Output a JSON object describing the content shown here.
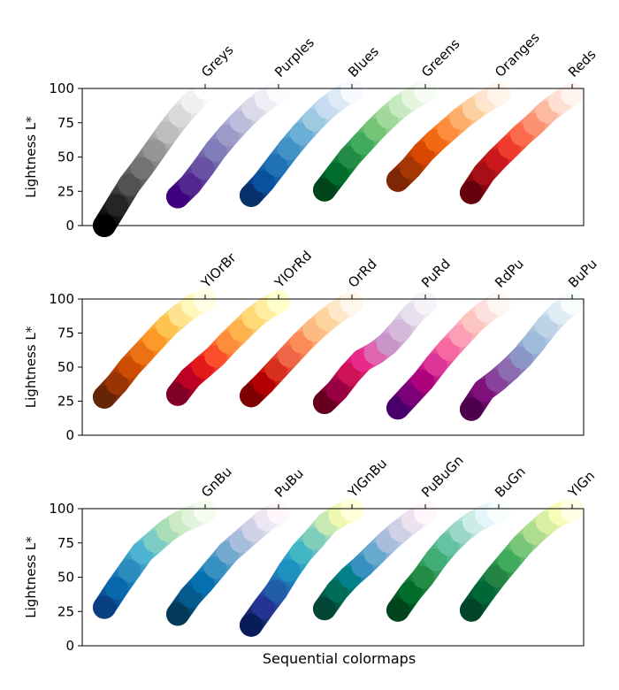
{
  "chart_data": [
    {
      "type": "scatter",
      "ylabel": "Lightness L*",
      "ylim": [
        0,
        100
      ],
      "yticks": [
        0,
        25,
        50,
        75,
        100
      ],
      "series": [
        {
          "name": "Greys",
          "values": [
            0,
            15,
            30,
            42,
            55,
            68,
            80,
            90,
            100
          ],
          "colors": [
            "#000000",
            "#252525",
            "#525252",
            "#737373",
            "#969696",
            "#bdbdbd",
            "#d9d9d9",
            "#f0f0f0",
            "#ffffff"
          ]
        },
        {
          "name": "Purples",
          "values": [
            21,
            30,
            42,
            55,
            66,
            76,
            85,
            92,
            98
          ],
          "colors": [
            "#3f007d",
            "#54278f",
            "#6a51a3",
            "#807dba",
            "#9e9ac8",
            "#bcbddc",
            "#dadaeb",
            "#efedf5",
            "#fcfbfd"
          ]
        },
        {
          "name": "Blues",
          "values": [
            22,
            32,
            44,
            56,
            67,
            77,
            86,
            93,
            98
          ],
          "colors": [
            "#08306b",
            "#08519c",
            "#2171b5",
            "#4292c6",
            "#6baed6",
            "#9ecae1",
            "#c6dbef",
            "#deebf7",
            "#f7fbff"
          ]
        },
        {
          "name": "Greens",
          "values": [
            26,
            38,
            50,
            60,
            70,
            79,
            87,
            93,
            98
          ],
          "colors": [
            "#00441b",
            "#006d2c",
            "#238b45",
            "#41ab5d",
            "#74c476",
            "#a1d99b",
            "#c7e9c0",
            "#e5f5e0",
            "#f7fcf5"
          ]
        },
        {
          "name": "Oranges",
          "values": [
            33,
            42,
            53,
            62,
            70,
            78,
            85,
            91,
            96
          ],
          "colors": [
            "#7f2704",
            "#a63603",
            "#d94801",
            "#f16913",
            "#fd8d3c",
            "#fdae6b",
            "#fdd0a2",
            "#fee6ce",
            "#fff5eb"
          ]
        },
        {
          "name": "Reds",
          "values": [
            24,
            38,
            48,
            57,
            66,
            74,
            83,
            90,
            96
          ],
          "colors": [
            "#67000d",
            "#a50f15",
            "#cb181d",
            "#ef3b2c",
            "#fb6a4a",
            "#fc9272",
            "#fcbba1",
            "#fee0d2",
            "#fff5f0"
          ]
        }
      ]
    },
    {
      "type": "scatter",
      "ylabel": "Lightness L*",
      "ylim": [
        0,
        100
      ],
      "yticks": [
        0,
        25,
        50,
        75,
        100
      ],
      "series": [
        {
          "name": "YlOrBr",
          "values": [
            28,
            38,
            50,
            60,
            70,
            80,
            88,
            95,
            99
          ],
          "colors": [
            "#662506",
            "#993404",
            "#cc4c02",
            "#ec7014",
            "#fe9929",
            "#fec44f",
            "#fee391",
            "#fff7bc",
            "#ffffe5"
          ]
        },
        {
          "name": "YlOrRd",
          "values": [
            30,
            42,
            50,
            58,
            68,
            77,
            86,
            93,
            98
          ],
          "colors": [
            "#800026",
            "#bd0026",
            "#e31a1c",
            "#fc4e2a",
            "#fd8d3c",
            "#feb24c",
            "#fed976",
            "#ffeda0",
            "#ffffcc"
          ]
        },
        {
          "name": "OrRd",
          "values": [
            29,
            38,
            48,
            58,
            68,
            77,
            85,
            92,
            97
          ],
          "colors": [
            "#7f0000",
            "#b30000",
            "#d7301f",
            "#ef6548",
            "#fc8d59",
            "#fdbb84",
            "#fdd49e",
            "#fee8c8",
            "#fff7ec"
          ]
        },
        {
          "name": "PuRd",
          "values": [
            24,
            33,
            45,
            55,
            60,
            67,
            77,
            89,
            97
          ],
          "colors": [
            "#67001f",
            "#980043",
            "#ce1256",
            "#e7298a",
            "#df65b0",
            "#c994c7",
            "#d4b9da",
            "#e7e1ef",
            "#f7f4f9"
          ]
        },
        {
          "name": "RdPu",
          "values": [
            20,
            30,
            40,
            52,
            63,
            73,
            83,
            91,
            97
          ],
          "colors": [
            "#49006a",
            "#7a0177",
            "#ae017e",
            "#dd3497",
            "#f768a1",
            "#fa9fb5",
            "#fcc5c0",
            "#fde0dd",
            "#fff7f3"
          ]
        },
        {
          "name": "BuPu",
          "values": [
            19,
            33,
            40,
            48,
            57,
            68,
            80,
            90,
            97
          ],
          "colors": [
            "#4d004b",
            "#810f7c",
            "#88419d",
            "#8c6bb1",
            "#8c96c6",
            "#9ebcda",
            "#bfd3e6",
            "#e0ecf4",
            "#f7fcfd"
          ]
        }
      ]
    },
    {
      "type": "scatter",
      "ylabel": "Lightness L*",
      "xlabel": "Sequential colormaps",
      "ylim": [
        0,
        100
      ],
      "yticks": [
        0,
        25,
        50,
        75,
        100
      ],
      "series": [
        {
          "name": "GnBu",
          "values": [
            28,
            42,
            55,
            68,
            76,
            84,
            90,
            94,
            98
          ],
          "colors": [
            "#084081",
            "#0868ac",
            "#2b8cbe",
            "#4eb3d3",
            "#7bccc4",
            "#a8ddb5",
            "#ccebc5",
            "#e0f3db",
            "#f7fcf0"
          ]
        },
        {
          "name": "PuBu",
          "values": [
            23,
            36,
            46,
            57,
            68,
            76,
            84,
            92,
            97
          ],
          "colors": [
            "#023858",
            "#045a8d",
            "#0570b0",
            "#3690c0",
            "#74a9cf",
            "#a6bddb",
            "#d0d1e6",
            "#ece7f2",
            "#fff7fb"
          ]
        },
        {
          "name": "YlGnBu",
          "values": [
            15,
            28,
            40,
            55,
            68,
            78,
            89,
            95,
            99
          ],
          "colors": [
            "#081d58",
            "#253494",
            "#225ea8",
            "#1d91c0",
            "#41b6c4",
            "#7fcdbb",
            "#c7e9b4",
            "#edf8b1",
            "#ffffd9"
          ]
        },
        {
          "name": "PuBuGn",
          "values": [
            27,
            40,
            50,
            58,
            67,
            76,
            84,
            91,
            97
          ],
          "colors": [
            "#014636",
            "#016c59",
            "#02818a",
            "#3690c0",
            "#67a9cf",
            "#a6bddb",
            "#d0d1e6",
            "#ece2f0",
            "#fff7fb"
          ]
        },
        {
          "name": "BuGn",
          "values": [
            26,
            39,
            50,
            63,
            74,
            83,
            90,
            95,
            98
          ],
          "colors": [
            "#00441b",
            "#006d2c",
            "#238b45",
            "#41ae76",
            "#66c2a4",
            "#99d8c9",
            "#ccece6",
            "#e5f5f9",
            "#f7fcfd"
          ]
        },
        {
          "name": "YlGn",
          "values": [
            26,
            39,
            51,
            62,
            73,
            82,
            90,
            96,
            99
          ],
          "colors": [
            "#004529",
            "#006837",
            "#238443",
            "#41ab5d",
            "#78c679",
            "#addd8e",
            "#d9f0a3",
            "#f7fcb9",
            "#ffffe5"
          ]
        }
      ]
    }
  ]
}
